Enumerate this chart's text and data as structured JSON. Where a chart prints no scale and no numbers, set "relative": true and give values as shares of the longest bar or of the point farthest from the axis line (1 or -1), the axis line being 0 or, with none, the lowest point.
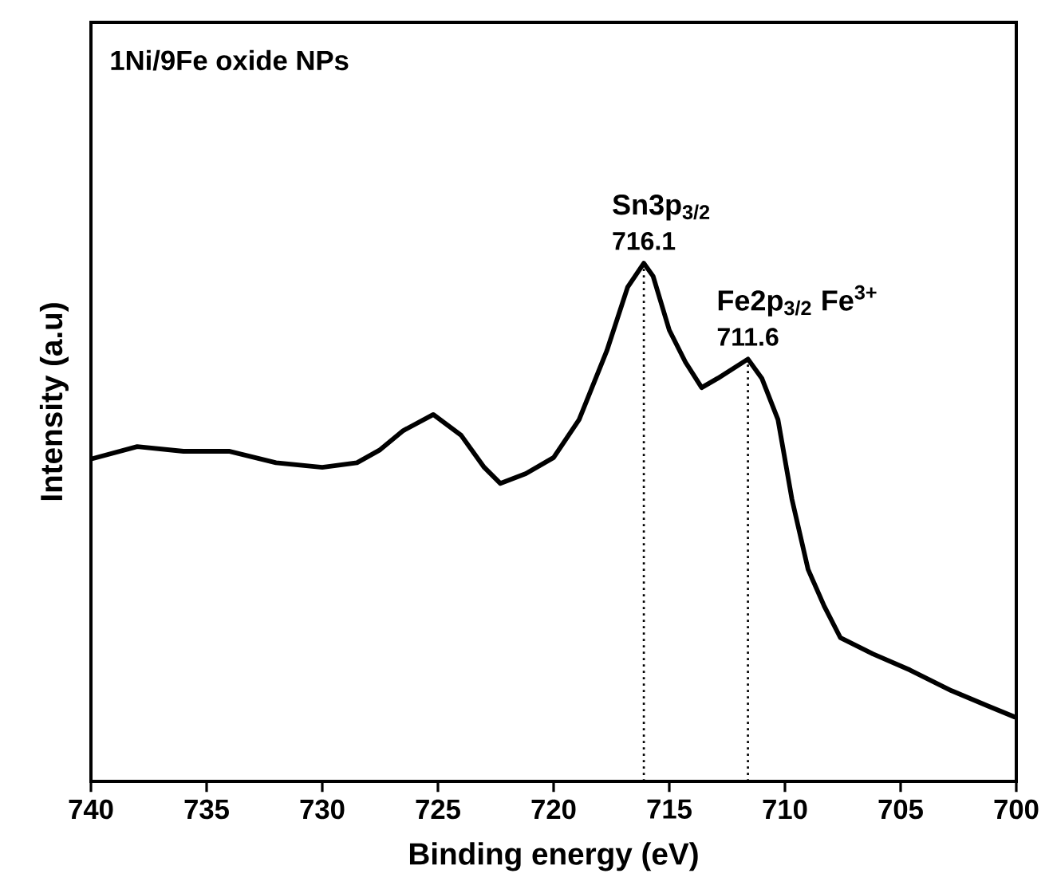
{
  "chart_data": {
    "type": "line",
    "title": "1Ni/9Fe oxide NPs",
    "xlabel": "Binding energy (eV)",
    "ylabel": "Intensity (a.u)",
    "relative": true,
    "x": [
      740,
      738,
      736,
      734,
      732,
      730,
      728.5,
      727.5,
      726.5,
      725.2,
      724,
      723,
      722.3,
      721.2,
      720,
      718.9,
      717.7,
      716.8,
      716.1,
      715.7,
      715.0,
      714.3,
      713.6,
      712.9,
      711.6,
      711.0,
      710.3,
      709.7,
      709.0,
      708.3,
      707.6,
      706.2,
      704.6,
      702.8,
      701.2,
      700
    ],
    "series": [
      {
        "color": "#000000",
        "values": [
          0.622,
          0.646,
          0.637,
          0.637,
          0.615,
          0.606,
          0.615,
          0.64,
          0.677,
          0.708,
          0.668,
          0.606,
          0.575,
          0.594,
          0.625,
          0.698,
          0.831,
          0.954,
          1.0,
          0.975,
          0.871,
          0.809,
          0.76,
          0.778,
          0.815,
          0.778,
          0.698,
          0.545,
          0.409,
          0.338,
          0.277,
          0.246,
          0.215,
          0.175,
          0.145,
          0.123
        ]
      }
    ],
    "xlim": [
      740,
      700
    ],
    "xticks": [
      740,
      735,
      730,
      725,
      720,
      715,
      710,
      705,
      700
    ],
    "ref_lines": [
      {
        "axis": "x",
        "value": 716.1,
        "label": "716.1",
        "line_style": "dotted"
      },
      {
        "axis": "x",
        "value": 711.6,
        "label": "711.6",
        "line_style": "dotted"
      }
    ],
    "annotations": [
      "Sn3p$_{3/2}$",
      "Fe2p$_{3/2}$ Fe$^{3+}$"
    ]
  }
}
